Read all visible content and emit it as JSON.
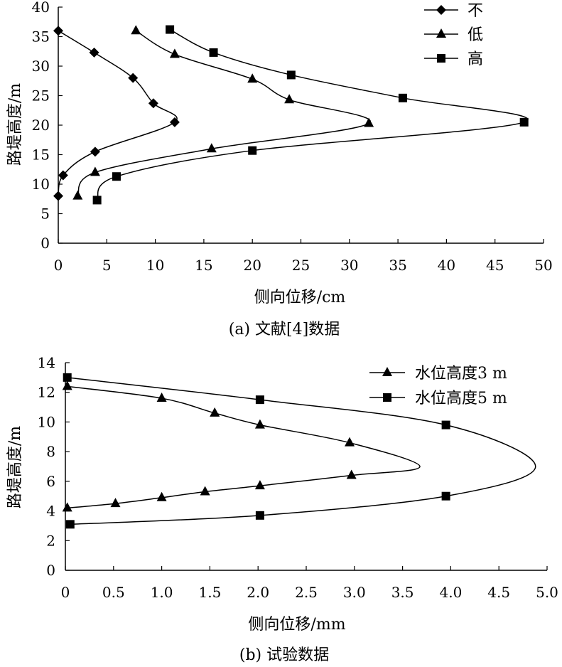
{
  "chart_data": [
    {
      "type": "line",
      "caption": "(a) 文献[4]数据",
      "xlabel": "侧向位移/cm",
      "ylabel": "路堤高度/m",
      "xlim": [
        0,
        50
      ],
      "ylim": [
        0,
        40
      ],
      "xticks": [
        "0",
        "5",
        "10",
        "15",
        "20",
        "25",
        "30",
        "35",
        "40",
        "45",
        "50"
      ],
      "yticks": [
        "0",
        "5",
        "10",
        "15",
        "20",
        "25",
        "30",
        "35",
        "40"
      ],
      "legend_position": "top-right",
      "grid": false,
      "series": [
        {
          "name": "不",
          "marker": "diamond",
          "points": [
            [
              0,
              8
            ],
            [
              0.5,
              11.5
            ],
            [
              3.8,
              15.5
            ],
            [
              12,
              20.5
            ],
            [
              9.8,
              23.7
            ],
            [
              7.7,
              28
            ],
            [
              3.7,
              32.3
            ],
            [
              0,
              36
            ]
          ]
        },
        {
          "name": "低",
          "marker": "triangle",
          "points": [
            [
              2,
              8
            ],
            [
              3.8,
              12
            ],
            [
              15.8,
              16
            ],
            [
              32,
              20.3
            ],
            [
              23.8,
              24.3
            ],
            [
              20,
              27.8
            ],
            [
              12,
              32
            ],
            [
              8,
              36
            ]
          ]
        },
        {
          "name": "高",
          "marker": "square",
          "points": [
            [
              4,
              7.3
            ],
            [
              6,
              11.3
            ],
            [
              20,
              15.7
            ],
            [
              48,
              20.5
            ],
            [
              35.5,
              24.6
            ],
            [
              24,
              28.5
            ],
            [
              16,
              32.3
            ],
            [
              11.5,
              36.2
            ]
          ]
        }
      ]
    },
    {
      "type": "line",
      "caption": "(b) 试验数据",
      "xlabel": "侧向位移/mm",
      "ylabel": "路堤高度/m",
      "xlim": [
        0,
        5
      ],
      "ylim": [
        0,
        14
      ],
      "xticks": [
        "0",
        "0.5",
        "1.0",
        "1.5",
        "2.0",
        "2.5",
        "3.0",
        "3.5",
        "4.0",
        "4.5",
        "5.0"
      ],
      "yticks": [
        "0",
        "2",
        "4",
        "6",
        "8",
        "10",
        "12",
        "14"
      ],
      "legend_position": "top-right",
      "grid": false,
      "series": [
        {
          "name": "水位高度3 m",
          "marker": "triangle",
          "points": [
            [
              0.02,
              4.2
            ],
            [
              0.52,
              4.5
            ],
            [
              1.0,
              4.9
            ],
            [
              1.45,
              5.3
            ],
            [
              2.02,
              5.7
            ],
            [
              2.97,
              6.4
            ],
            [
              3.68,
              7.0
            ],
            [
              2.95,
              8.6
            ],
            [
              2.02,
              9.8
            ],
            [
              1.55,
              10.6
            ],
            [
              1.0,
              11.6
            ],
            [
              0.02,
              12.4
            ]
          ],
          "markers_at": [
            0,
            1,
            2,
            3,
            4,
            5,
            7,
            8,
            9,
            10,
            11
          ]
        },
        {
          "name": "水位高度5 m",
          "marker": "square",
          "points": [
            [
              0.05,
              3.1
            ],
            [
              2.02,
              3.7
            ],
            [
              3.95,
              5.0
            ],
            [
              4.88,
              7.0
            ],
            [
              3.95,
              9.8
            ],
            [
              2.02,
              11.5
            ],
            [
              0.02,
              13.0
            ]
          ],
          "markers_at": [
            0,
            1,
            2,
            4,
            5,
            6
          ]
        }
      ]
    }
  ]
}
